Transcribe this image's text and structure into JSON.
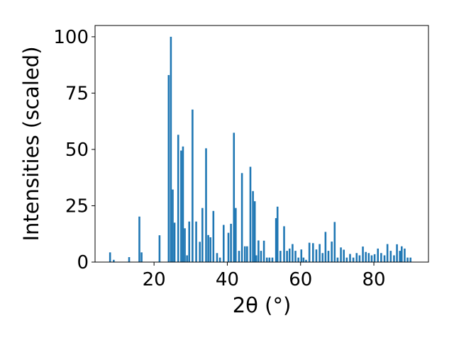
{
  "chart_data": {
    "type": "bar",
    "title": "",
    "xlabel": "2θ (°)",
    "ylabel": "Intensities (scaled)",
    "xlim": [
      3.9,
      94.9
    ],
    "ylim": [
      0,
      105
    ],
    "xticks": [
      20,
      40,
      60,
      80
    ],
    "yticks": [
      0,
      25,
      50,
      75,
      100
    ],
    "bar_width": 0.5,
    "bar_color": "#1f77b4",
    "grid": false,
    "legend": "none",
    "x": [
      8.0,
      9.0,
      13.2,
      16.0,
      16.6,
      21.5,
      24.0,
      24.6,
      25.1,
      25.6,
      26.6,
      27.4,
      27.9,
      28.4,
      29.0,
      29.6,
      30.5,
      31.5,
      32.5,
      33.2,
      34.2,
      34.8,
      35.4,
      36.2,
      37.2,
      38.0,
      39.0,
      40.3,
      41.0,
      41.8,
      42.3,
      43.2,
      44.0,
      44.8,
      45.4,
      46.3,
      47.0,
      47.5,
      47.9,
      48.5,
      49.2,
      50.0,
      50.8,
      51.5,
      52.3,
      53.3,
      53.7,
      54.5,
      55.5,
      56.3,
      57.0,
      57.8,
      58.6,
      59.4,
      60.2,
      60.8,
      61.5,
      62.4,
      63.4,
      64.3,
      65.2,
      66.0,
      66.8,
      67.6,
      68.5,
      69.3,
      70.1,
      71.0,
      71.8,
      72.6,
      73.5,
      74.4,
      75.3,
      76.1,
      77.0,
      77.8,
      78.6,
      79.4,
      80.2,
      81.1,
      82.0,
      82.9,
      83.7,
      84.6,
      85.5,
      86.3,
      87.1,
      87.6,
      88.4,
      89.2,
      90.0
    ],
    "values": [
      4.3,
      1.0,
      2.2,
      20.2,
      4.3,
      11.9,
      83.0,
      100.0,
      32.2,
      17.5,
      56.5,
      49.5,
      51.3,
      15.0,
      3.0,
      18.0,
      67.7,
      18.0,
      9.0,
      24.0,
      50.5,
      12.0,
      11.0,
      22.7,
      4.0,
      2.0,
      16.5,
      13.0,
      17.0,
      57.4,
      24.0,
      5.0,
      39.5,
      7.0,
      7.0,
      42.3,
      31.5,
      27.0,
      3.0,
      9.6,
      5.0,
      9.5,
      2.0,
      2.0,
      2.0,
      19.5,
      24.6,
      5.0,
      15.9,
      5.0,
      6.0,
      8.0,
      5.0,
      2.0,
      5.6,
      2.0,
      1.0,
      8.6,
      8.4,
      5.6,
      8.0,
      4.0,
      13.4,
      5.0,
      9.1,
      17.8,
      2.0,
      6.5,
      5.5,
      2.0,
      3.6,
      2.0,
      4.0,
      3.0,
      6.9,
      4.5,
      4.0,
      3.0,
      3.5,
      6.0,
      4.0,
      3.0,
      8.0,
      5.0,
      3.0,
      7.9,
      5.0,
      7.0,
      6.0,
      2.0,
      2.0
    ]
  }
}
